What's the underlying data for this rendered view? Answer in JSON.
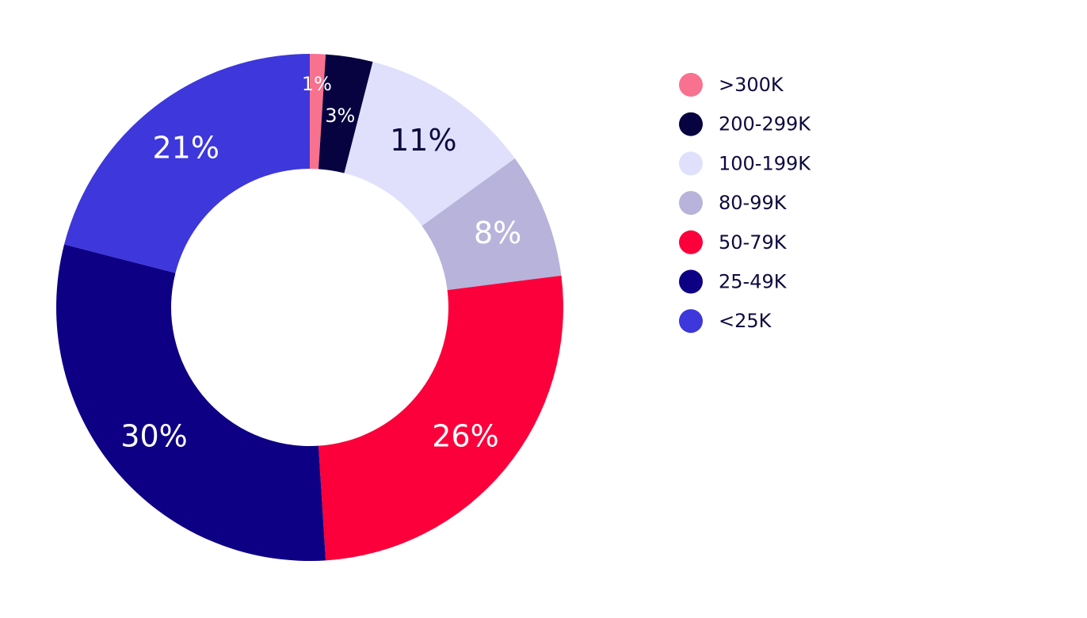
{
  "chart_data": {
    "type": "pie",
    "variant": "donut",
    "title": "",
    "legend_position": "right",
    "slices": [
      {
        "name": ">300K",
        "value": 1,
        "label": "1%",
        "color": "#f8718f",
        "label_color": "#ffffff"
      },
      {
        "name": "200-299K",
        "value": 3,
        "label": "3%",
        "color": "#070340",
        "label_color": "#ffffff"
      },
      {
        "name": "100-199K",
        "value": 11,
        "label": "11%",
        "color": "#e0e0fc",
        "label_color": "#0d0a3f"
      },
      {
        "name": "80-99K",
        "value": 8,
        "label": "8%",
        "color": "#b7b3db",
        "label_color": "#ffffff"
      },
      {
        "name": "50-79K",
        "value": 26,
        "label": "26%",
        "color": "#fb003a",
        "label_color": "#ffffff"
      },
      {
        "name": "25-49K",
        "value": 30,
        "label": "30%",
        "color": "#0e0084",
        "label_color": "#ffffff"
      },
      {
        "name": "<25K",
        "value": 21,
        "label": "21%",
        "color": "#3d37dc",
        "label_color": "#ffffff"
      }
    ]
  }
}
